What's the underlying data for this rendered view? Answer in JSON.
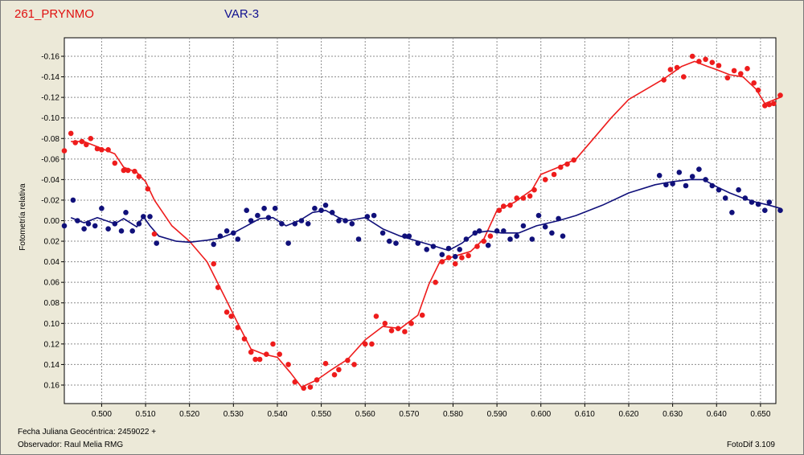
{
  "header": {
    "object_name": "261_PRYNMO",
    "star_label": "VAR-3"
  },
  "footer": {
    "date_label": "Fecha Juliana Geocéntrica: 2459022 +",
    "observer_label": "Observador: Raul Melia RMG",
    "software": "FotoDif 3.109"
  },
  "colors": {
    "background": "#ece9d8",
    "plot_bg": "#ffffff",
    "var_series": "#ee1c1c",
    "check_series": "#10107a",
    "grid": "#8c8c8c"
  },
  "chart_data": {
    "type": "scatter",
    "ylabel": "Fotometría relativa",
    "xlim": [
      0.4915,
      0.6535
    ],
    "ylim": [
      0.178,
      -0.178
    ],
    "y_inverted": true,
    "grid": true,
    "x_ticks": [
      "0.500",
      "0.510",
      "0.520",
      "0.530",
      "0.540",
      "0.550",
      "0.560",
      "0.570",
      "0.580",
      "0.590",
      "0.600",
      "0.610",
      "0.620",
      "0.630",
      "0.640",
      "0.650"
    ],
    "y_ticks": [
      "-0.16",
      "-0.14",
      "-0.12",
      "-0.10",
      "-0.08",
      "-0.06",
      "-0.04",
      "-0.02",
      "0.00",
      "0.02",
      "0.04",
      "0.06",
      "0.08",
      "0.10",
      "0.12",
      "0.14",
      "0.16"
    ],
    "series": [
      {
        "color": "#ee1c1c",
        "points": [
          [
            0.4915,
            -0.068
          ],
          [
            0.493,
            -0.085
          ],
          [
            0.494,
            -0.076
          ],
          [
            0.4955,
            -0.077
          ],
          [
            0.4965,
            -0.074
          ],
          [
            0.4975,
            -0.08
          ],
          [
            0.499,
            -0.07
          ],
          [
            0.5,
            -0.069
          ],
          [
            0.5015,
            -0.069
          ],
          [
            0.503,
            -0.056
          ],
          [
            0.505,
            -0.049
          ],
          [
            0.506,
            -0.049
          ],
          [
            0.5075,
            -0.048
          ],
          [
            0.5085,
            -0.043
          ],
          [
            0.5105,
            -0.031
          ],
          [
            0.512,
            0.013
          ],
          [
            0.5255,
            0.042
          ],
          [
            0.5265,
            0.065
          ],
          [
            0.5285,
            0.089
          ],
          [
            0.5295,
            0.093
          ],
          [
            0.531,
            0.104
          ],
          [
            0.5325,
            0.115
          ],
          [
            0.534,
            0.128
          ],
          [
            0.535,
            0.135
          ],
          [
            0.536,
            0.135
          ],
          [
            0.5375,
            0.13
          ],
          [
            0.539,
            0.12
          ],
          [
            0.5405,
            0.13
          ],
          [
            0.5425,
            0.14
          ],
          [
            0.544,
            0.157
          ],
          [
            0.546,
            0.163
          ],
          [
            0.5475,
            0.162
          ],
          [
            0.549,
            0.155
          ],
          [
            0.551,
            0.139
          ],
          [
            0.553,
            0.15
          ],
          [
            0.554,
            0.145
          ],
          [
            0.556,
            0.136
          ],
          [
            0.5575,
            0.14
          ],
          [
            0.56,
            0.12
          ],
          [
            0.5615,
            0.12
          ],
          [
            0.5625,
            0.093
          ],
          [
            0.5645,
            0.1
          ],
          [
            0.566,
            0.107
          ],
          [
            0.5675,
            0.105
          ],
          [
            0.569,
            0.108
          ],
          [
            0.5705,
            0.1
          ],
          [
            0.573,
            0.092
          ],
          [
            0.576,
            0.06
          ],
          [
            0.5775,
            0.04
          ],
          [
            0.579,
            0.036
          ],
          [
            0.5805,
            0.042
          ],
          [
            0.582,
            0.036
          ],
          [
            0.5835,
            0.034
          ],
          [
            0.5855,
            0.025
          ],
          [
            0.587,
            0.02
          ],
          [
            0.5885,
            0.015
          ],
          [
            0.5905,
            -0.01
          ],
          [
            0.5915,
            -0.014
          ],
          [
            0.593,
            -0.015
          ],
          [
            0.5945,
            -0.022
          ],
          [
            0.596,
            -0.022
          ],
          [
            0.5975,
            -0.024
          ],
          [
            0.5985,
            -0.03
          ],
          [
            0.601,
            -0.04
          ],
          [
            0.603,
            -0.045
          ],
          [
            0.6045,
            -0.052
          ],
          [
            0.606,
            -0.055
          ],
          [
            0.6075,
            -0.059
          ],
          [
            0.628,
            -0.137
          ],
          [
            0.6295,
            -0.147
          ],
          [
            0.631,
            -0.149
          ],
          [
            0.6325,
            -0.14
          ],
          [
            0.6345,
            -0.16
          ],
          [
            0.636,
            -0.155
          ],
          [
            0.6375,
            -0.157
          ],
          [
            0.639,
            -0.154
          ],
          [
            0.6405,
            -0.151
          ],
          [
            0.6425,
            -0.139
          ],
          [
            0.644,
            -0.146
          ],
          [
            0.6455,
            -0.143
          ],
          [
            0.647,
            -0.148
          ],
          [
            0.6485,
            -0.134
          ],
          [
            0.6495,
            -0.127
          ],
          [
            0.651,
            -0.112
          ],
          [
            0.652,
            -0.113
          ],
          [
            0.653,
            -0.114
          ],
          [
            0.6545,
            -0.122
          ]
        ],
        "curve": [
          [
            0.493,
            -0.077
          ],
          [
            0.496,
            -0.077
          ],
          [
            0.499,
            -0.072
          ],
          [
            0.503,
            -0.065
          ],
          [
            0.505,
            -0.052
          ],
          [
            0.508,
            -0.047
          ],
          [
            0.51,
            -0.038
          ],
          [
            0.512,
            -0.02
          ],
          [
            0.516,
            0.005
          ],
          [
            0.52,
            0.02
          ],
          [
            0.524,
            0.04
          ],
          [
            0.528,
            0.074
          ],
          [
            0.531,
            0.1
          ],
          [
            0.534,
            0.125
          ],
          [
            0.537,
            0.13
          ],
          [
            0.54,
            0.133
          ],
          [
            0.543,
            0.148
          ],
          [
            0.5455,
            0.162
          ],
          [
            0.549,
            0.155
          ],
          [
            0.552,
            0.146
          ],
          [
            0.556,
            0.135
          ],
          [
            0.56,
            0.116
          ],
          [
            0.564,
            0.103
          ],
          [
            0.568,
            0.105
          ],
          [
            0.572,
            0.092
          ],
          [
            0.5745,
            0.062
          ],
          [
            0.577,
            0.04
          ],
          [
            0.58,
            0.035
          ],
          [
            0.584,
            0.03
          ],
          [
            0.587,
            0.018
          ],
          [
            0.59,
            -0.01
          ],
          [
            0.594,
            -0.018
          ],
          [
            0.598,
            -0.03
          ],
          [
            0.6,
            -0.045
          ],
          [
            0.604,
            -0.052
          ],
          [
            0.608,
            -0.06
          ],
          [
            0.612,
            -0.08
          ],
          [
            0.616,
            -0.1
          ],
          [
            0.62,
            -0.118
          ],
          [
            0.624,
            -0.128
          ],
          [
            0.628,
            -0.138
          ],
          [
            0.632,
            -0.15
          ],
          [
            0.635,
            -0.155
          ],
          [
            0.638,
            -0.15
          ],
          [
            0.64,
            -0.147
          ],
          [
            0.643,
            -0.142
          ],
          [
            0.646,
            -0.14
          ],
          [
            0.649,
            -0.128
          ],
          [
            0.651,
            -0.114
          ],
          [
            0.6545,
            -0.12
          ]
        ]
      },
      {
        "color": "#10107a",
        "points": [
          [
            0.4915,
            0.005
          ],
          [
            0.4935,
            -0.02
          ],
          [
            0.4945,
            0.0
          ],
          [
            0.496,
            0.008
          ],
          [
            0.497,
            0.003
          ],
          [
            0.4985,
            0.005
          ],
          [
            0.5,
            -0.012
          ],
          [
            0.5015,
            0.008
          ],
          [
            0.503,
            0.003
          ],
          [
            0.5045,
            0.01
          ],
          [
            0.5055,
            -0.008
          ],
          [
            0.507,
            0.01
          ],
          [
            0.5085,
            0.003
          ],
          [
            0.5095,
            -0.004
          ],
          [
            0.511,
            -0.004
          ],
          [
            0.5125,
            0.022
          ],
          [
            0.5255,
            0.023
          ],
          [
            0.527,
            0.015
          ],
          [
            0.5285,
            0.01
          ],
          [
            0.53,
            0.012
          ],
          [
            0.531,
            0.018
          ],
          [
            0.533,
            -0.01
          ],
          [
            0.534,
            0.0
          ],
          [
            0.5355,
            -0.005
          ],
          [
            0.537,
            -0.012
          ],
          [
            0.538,
            -0.003
          ],
          [
            0.5395,
            -0.012
          ],
          [
            0.541,
            0.003
          ],
          [
            0.5425,
            0.022
          ],
          [
            0.544,
            0.003
          ],
          [
            0.5455,
            0.0
          ],
          [
            0.547,
            0.003
          ],
          [
            0.5485,
            -0.012
          ],
          [
            0.55,
            -0.01
          ],
          [
            0.551,
            -0.015
          ],
          [
            0.5525,
            -0.008
          ],
          [
            0.554,
            0.0
          ],
          [
            0.5555,
            0.0
          ],
          [
            0.557,
            0.003
          ],
          [
            0.5585,
            0.018
          ],
          [
            0.5605,
            -0.004
          ],
          [
            0.562,
            -0.005
          ],
          [
            0.564,
            0.012
          ],
          [
            0.5655,
            0.02
          ],
          [
            0.567,
            0.022
          ],
          [
            0.569,
            0.015
          ],
          [
            0.57,
            0.015
          ],
          [
            0.572,
            0.022
          ],
          [
            0.574,
            0.028
          ],
          [
            0.5755,
            0.025
          ],
          [
            0.5775,
            0.033
          ],
          [
            0.579,
            0.027
          ],
          [
            0.5805,
            0.035
          ],
          [
            0.5815,
            0.028
          ],
          [
            0.583,
            0.018
          ],
          [
            0.585,
            0.012
          ],
          [
            0.586,
            0.01
          ],
          [
            0.588,
            0.024
          ],
          [
            0.59,
            0.01
          ],
          [
            0.5915,
            0.01
          ],
          [
            0.593,
            0.018
          ],
          [
            0.5945,
            0.015
          ],
          [
            0.596,
            0.005
          ],
          [
            0.598,
            0.018
          ],
          [
            0.5995,
            -0.005
          ],
          [
            0.601,
            0.006
          ],
          [
            0.6025,
            0.012
          ],
          [
            0.604,
            -0.002
          ],
          [
            0.605,
            0.015
          ],
          [
            0.627,
            -0.044
          ],
          [
            0.6285,
            -0.035
          ],
          [
            0.63,
            -0.036
          ],
          [
            0.6315,
            -0.047
          ],
          [
            0.633,
            -0.034
          ],
          [
            0.6345,
            -0.043
          ],
          [
            0.636,
            -0.05
          ],
          [
            0.6375,
            -0.04
          ],
          [
            0.639,
            -0.034
          ],
          [
            0.6405,
            -0.03
          ],
          [
            0.642,
            -0.022
          ],
          [
            0.6435,
            -0.008
          ],
          [
            0.645,
            -0.03
          ],
          [
            0.6465,
            -0.022
          ],
          [
            0.648,
            -0.018
          ],
          [
            0.6495,
            -0.016
          ],
          [
            0.651,
            -0.01
          ],
          [
            0.652,
            -0.018
          ],
          [
            0.6545,
            -0.01
          ]
        ],
        "curve": [
          [
            0.493,
            -0.003
          ],
          [
            0.496,
            0.002
          ],
          [
            0.499,
            -0.003
          ],
          [
            0.503,
            0.003
          ],
          [
            0.505,
            -0.002
          ],
          [
            0.508,
            0.006
          ],
          [
            0.5095,
            -0.004
          ],
          [
            0.511,
            0.005
          ],
          [
            0.513,
            0.015
          ],
          [
            0.517,
            0.02
          ],
          [
            0.52,
            0.021
          ],
          [
            0.524,
            0.019
          ],
          [
            0.527,
            0.017
          ],
          [
            0.53,
            0.012
          ],
          [
            0.533,
            0.005
          ],
          [
            0.536,
            -0.002
          ],
          [
            0.539,
            -0.003
          ],
          [
            0.542,
            0.005
          ],
          [
            0.545,
            0.0
          ],
          [
            0.548,
            -0.008
          ],
          [
            0.551,
            -0.01
          ],
          [
            0.554,
            -0.003
          ],
          [
            0.556,
            0.0
          ],
          [
            0.56,
            -0.003
          ],
          [
            0.564,
            0.008
          ],
          [
            0.568,
            0.015
          ],
          [
            0.572,
            0.02
          ],
          [
            0.576,
            0.025
          ],
          [
            0.579,
            0.029
          ],
          [
            0.582,
            0.022
          ],
          [
            0.585,
            0.012
          ],
          [
            0.588,
            0.01
          ],
          [
            0.591,
            0.012
          ],
          [
            0.595,
            0.012
          ],
          [
            0.599,
            0.005
          ],
          [
            0.604,
            0.0
          ],
          [
            0.608,
            -0.005
          ],
          [
            0.614,
            -0.015
          ],
          [
            0.62,
            -0.027
          ],
          [
            0.626,
            -0.035
          ],
          [
            0.63,
            -0.038
          ],
          [
            0.634,
            -0.04
          ],
          [
            0.637,
            -0.04
          ],
          [
            0.64,
            -0.033
          ],
          [
            0.643,
            -0.027
          ],
          [
            0.646,
            -0.022
          ],
          [
            0.649,
            -0.018
          ],
          [
            0.652,
            -0.015
          ],
          [
            0.6545,
            -0.012
          ]
        ]
      }
    ]
  }
}
